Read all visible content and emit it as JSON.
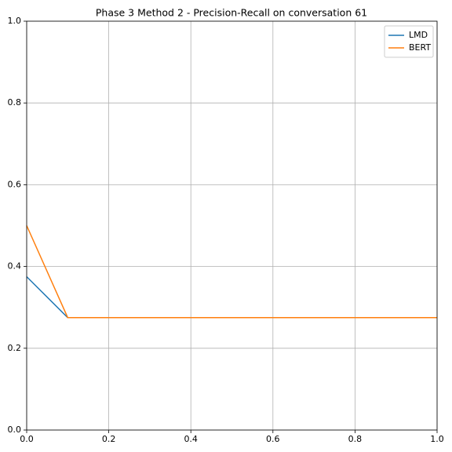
{
  "chart_data": {
    "type": "line",
    "title": "Phase 3 Method 2 - Precision-Recall on conversation 61",
    "x": [
      0,
      0.1,
      1
    ],
    "series": [
      {
        "name": "LMD",
        "color": "#1f77b4",
        "values": [
          0.375,
          0.275,
          0.275
        ]
      },
      {
        "name": "BERT",
        "color": "#ff7f0e",
        "values": [
          0.5,
          0.275,
          0.275
        ]
      }
    ],
    "xlim": [
      0,
      1
    ],
    "ylim": [
      0,
      1
    ],
    "xticks": [
      {
        "value": 0,
        "label": "0.0"
      },
      0.2,
      0.4,
      0.6,
      0.8,
      {
        "value": 1,
        "label": "1.0"
      }
    ],
    "yticks": [
      {
        "value": 0,
        "label": "0.0"
      },
      0.2,
      0.4,
      0.6,
      0.8,
      {
        "value": 1,
        "label": "1.0"
      }
    ],
    "grid": true,
    "legend": "upper right"
  }
}
